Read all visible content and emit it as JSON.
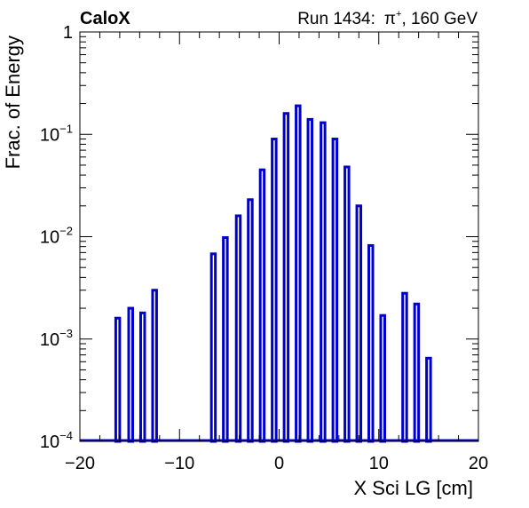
{
  "header": {
    "brand": "CaloX",
    "run_label": "Run 1434:",
    "particle_base": "π",
    "particle_sup": "+",
    "particle_rest": ", 160 GeV"
  },
  "chart_data": {
    "type": "bar",
    "title": "",
    "xlabel": "X Sci LG [cm]",
    "ylabel": "Frac. of Energy",
    "xlim": [
      -20,
      20
    ],
    "ylim": [
      0.0001,
      1
    ],
    "y_scale": "log",
    "grid": false,
    "legend": "none",
    "x_ticks": [
      -20,
      -10,
      0,
      10,
      20
    ],
    "x_tick_labels": [
      "−20",
      "−10",
      "0",
      "10",
      "20"
    ],
    "y_ticks": [
      {
        "value": 1,
        "base": "1",
        "exp": ""
      },
      {
        "value": 0.1,
        "base": "10",
        "exp": "−1"
      },
      {
        "value": 0.01,
        "base": "10",
        "exp": "−2"
      },
      {
        "value": 0.001,
        "base": "10",
        "exp": "−3"
      },
      {
        "value": 0.0001,
        "base": "10",
        "exp": "−4"
      }
    ],
    "bin_width": 0.4,
    "series": [
      {
        "color": "#0000cc",
        "x": [
          -16.2,
          -14.9,
          -13.7,
          -12.5,
          -6.6,
          -5.4,
          -4.1,
          -2.9,
          -1.7,
          -0.5,
          0.7,
          1.9,
          3.1,
          4.4,
          5.6,
          6.8,
          8.0,
          9.2,
          10.4,
          12.6,
          13.8,
          15.0
        ],
        "values": [
          0.0016,
          0.002,
          0.0018,
          0.003,
          0.0068,
          0.0098,
          0.016,
          0.023,
          0.045,
          0.09,
          0.16,
          0.19,
          0.14,
          0.13,
          0.09,
          0.048,
          0.02,
          0.0082,
          0.0017,
          0.0028,
          0.0022,
          0.00065
        ]
      }
    ]
  }
}
